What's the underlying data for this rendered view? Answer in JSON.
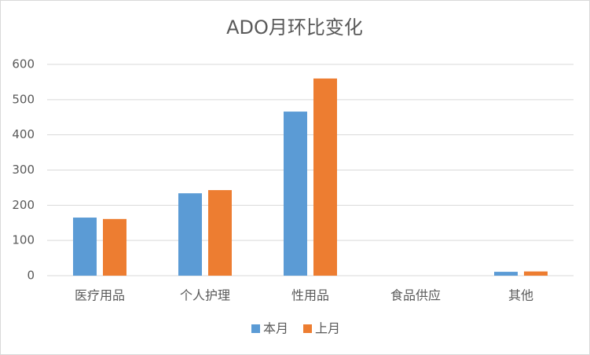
{
  "chart_data": {
    "type": "bar",
    "title": "ADO月环比变化",
    "categories": [
      "医疗用品",
      "个人护理",
      "性用品",
      "食品供应",
      "其他"
    ],
    "series": [
      {
        "name": "本月",
        "color": "#5b9bd5",
        "values": [
          165,
          234,
          466,
          0,
          11
        ]
      },
      {
        "name": "上月",
        "color": "#ed7d31",
        "values": [
          161,
          243,
          560,
          0,
          12
        ]
      }
    ],
    "ylim": [
      0,
      600
    ],
    "yticks": [
      0,
      100,
      200,
      300,
      400,
      500,
      600
    ],
    "grid": true,
    "legend": "bottom"
  }
}
